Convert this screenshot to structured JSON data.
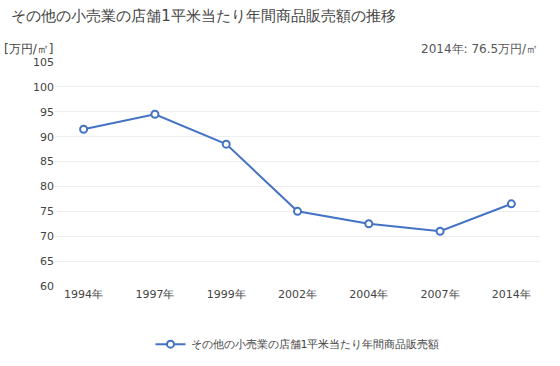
{
  "chart_data": {
    "type": "line",
    "title": "その他の小売業の店舗1平米当たり年間商品販売額の推移",
    "ylabel": "[万円/㎡]",
    "annotation": "2014年: 76.5万円/㎡",
    "categories": [
      "1994年",
      "1997年",
      "1999年",
      "2002年",
      "2004年",
      "2007年",
      "2014年"
    ],
    "series": [
      {
        "name": "その他の小売業の店舗1平米当たり年間商品販売額",
        "color": "#4472C4",
        "marker": "circle",
        "values": [
          91.5,
          94.5,
          88.5,
          75.0,
          72.5,
          71.0,
          76.5
        ]
      }
    ],
    "ylim": [
      60,
      105
    ],
    "yticks": [
      60,
      65,
      70,
      75,
      80,
      85,
      90,
      95,
      100,
      105
    ],
    "grid": true,
    "legend": "bottom"
  }
}
